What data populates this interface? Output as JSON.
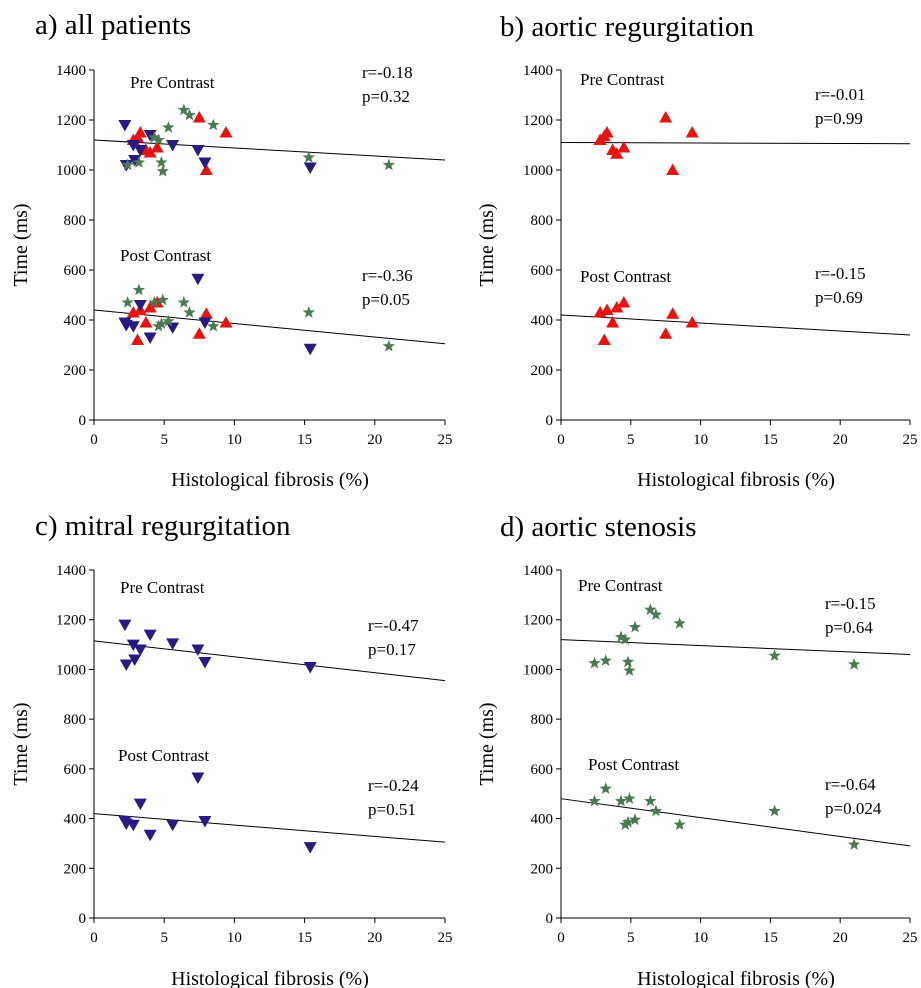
{
  "colors": {
    "aortic_regurgitation": "#e8130f",
    "mitral_regurgitation": "#271b83",
    "aortic_stenosis": "#4a7a52",
    "axis": "#000000",
    "regression_line": "#000000"
  },
  "markers": {
    "aortic_regurgitation": "triangle-up",
    "mitral_regurgitation": "triangle-down",
    "aortic_stenosis": "star"
  },
  "chart_data": [
    {
      "type": "scatter",
      "title": "a) all patients",
      "xlabel": "Histological fibrosis (%)",
      "ylabel": "Time (ms)",
      "xlim": [
        0,
        25
      ],
      "ylim": [
        0,
        1400
      ],
      "xticks": [
        "0",
        "5",
        "10",
        "15",
        "20",
        "25"
      ],
      "yticks": [
        "0",
        "200",
        "400",
        "600",
        "800",
        "1000",
        "1200",
        "1400"
      ],
      "grid": false,
      "groups": [
        {
          "label": "Pre Contrast",
          "stats": [
            "r=-0.18",
            "p=0.32"
          ],
          "regression": {
            "x": [
              0,
              25
            ],
            "y": [
              1120,
              1040
            ]
          },
          "series": [
            {
              "marker": "triangle-up",
              "color_key": "aortic_regurgitation",
              "points": [
                [
                  2.8,
                  1120
                ],
                [
                  3.1,
                  1130
                ],
                [
                  3.3,
                  1150
                ],
                [
                  3.7,
                  1080
                ],
                [
                  4.0,
                  1070
                ],
                [
                  4.5,
                  1090
                ],
                [
                  7.5,
                  1210
                ],
                [
                  8.0,
                  1000
                ],
                [
                  9.4,
                  1150
                ]
              ]
            },
            {
              "marker": "triangle-down",
              "color_key": "mitral_regurgitation",
              "points": [
                [
                  2.2,
                  1180
                ],
                [
                  2.3,
                  1020
                ],
                [
                  2.8,
                  1100
                ],
                [
                  2.9,
                  1040
                ],
                [
                  3.3,
                  1080
                ],
                [
                  4.0,
                  1140
                ],
                [
                  5.6,
                  1100
                ],
                [
                  7.4,
                  1080
                ],
                [
                  7.9,
                  1030
                ],
                [
                  15.4,
                  1010
                ]
              ]
            },
            {
              "marker": "star",
              "color_key": "aortic_stenosis",
              "points": [
                [
                  2.4,
                  1020
                ],
                [
                  3.2,
                  1030
                ],
                [
                  4.3,
                  1130
                ],
                [
                  4.6,
                  1120
                ],
                [
                  4.8,
                  1030
                ],
                [
                  4.9,
                  995
                ],
                [
                  5.3,
                  1170
                ],
                [
                  6.4,
                  1240
                ],
                [
                  6.8,
                  1220
                ],
                [
                  8.5,
                  1180
                ],
                [
                  15.3,
                  1050
                ],
                [
                  21.0,
                  1020
                ]
              ]
            }
          ]
        },
        {
          "label": "Post Contrast",
          "stats": [
            "r=-0.36",
            "p=0.05"
          ],
          "regression": {
            "x": [
              0,
              25
            ],
            "y": [
              440,
              305
            ]
          },
          "series": [
            {
              "marker": "triangle-up",
              "color_key": "aortic_regurgitation",
              "points": [
                [
                  2.8,
                  430
                ],
                [
                  3.1,
                  320
                ],
                [
                  3.3,
                  440
                ],
                [
                  3.7,
                  390
                ],
                [
                  4.0,
                  450
                ],
                [
                  4.5,
                  470
                ],
                [
                  7.5,
                  345
                ],
                [
                  8.0,
                  425
                ],
                [
                  9.4,
                  390
                ]
              ]
            },
            {
              "marker": "triangle-down",
              "color_key": "mitral_regurgitation",
              "points": [
                [
                  2.2,
                  390
                ],
                [
                  2.3,
                  380
                ],
                [
                  2.8,
                  375
                ],
                [
                  3.3,
                  460
                ],
                [
                  4.0,
                  330
                ],
                [
                  5.6,
                  370
                ],
                [
                  7.4,
                  565
                ],
                [
                  7.9,
                  390
                ],
                [
                  15.4,
                  285
                ]
              ]
            },
            {
              "marker": "star",
              "color_key": "aortic_stenosis",
              "points": [
                [
                  2.4,
                  470
                ],
                [
                  3.2,
                  520
                ],
                [
                  4.3,
                  470
                ],
                [
                  4.6,
                  375
                ],
                [
                  4.8,
                  385
                ],
                [
                  4.9,
                  480
                ],
                [
                  5.3,
                  395
                ],
                [
                  6.4,
                  470
                ],
                [
                  6.8,
                  430
                ],
                [
                  8.5,
                  375
                ],
                [
                  15.3,
                  430
                ],
                [
                  21.0,
                  295
                ]
              ]
            }
          ]
        }
      ]
    },
    {
      "type": "scatter",
      "title": "b) aortic regurgitation",
      "xlabel": "Histological fibrosis (%)",
      "ylabel": "Time (ms)",
      "xlim": [
        0,
        25
      ],
      "ylim": [
        0,
        1400
      ],
      "xticks": [
        "0",
        "5",
        "10",
        "15",
        "20",
        "25"
      ],
      "yticks": [
        "0",
        "200",
        "400",
        "600",
        "800",
        "1000",
        "1200",
        "1400"
      ],
      "grid": false,
      "groups": [
        {
          "label": "Pre Contrast",
          "stats": [
            "r=-0.01",
            "p=0.99"
          ],
          "regression": {
            "x": [
              0,
              25
            ],
            "y": [
              1110,
              1105
            ]
          },
          "series": [
            {
              "marker": "triangle-up",
              "color_key": "aortic_regurgitation",
              "points": [
                [
                  2.8,
                  1120
                ],
                [
                  3.1,
                  1135
                ],
                [
                  3.3,
                  1150
                ],
                [
                  3.7,
                  1080
                ],
                [
                  4.0,
                  1065
                ],
                [
                  4.5,
                  1090
                ],
                [
                  7.5,
                  1210
                ],
                [
                  8.0,
                  1000
                ],
                [
                  9.4,
                  1150
                ]
              ]
            }
          ]
        },
        {
          "label": "Post Contrast",
          "stats": [
            "r=-0.15",
            "p=0.69"
          ],
          "regression": {
            "x": [
              0,
              25
            ],
            "y": [
              420,
              340
            ]
          },
          "series": [
            {
              "marker": "triangle-up",
              "color_key": "aortic_regurgitation",
              "points": [
                [
                  2.8,
                  430
                ],
                [
                  3.1,
                  320
                ],
                [
                  3.3,
                  440
                ],
                [
                  3.7,
                  390
                ],
                [
                  4.0,
                  450
                ],
                [
                  4.5,
                  470
                ],
                [
                  7.5,
                  345
                ],
                [
                  8.0,
                  425
                ],
                [
                  9.4,
                  390
                ]
              ]
            }
          ]
        }
      ]
    },
    {
      "type": "scatter",
      "title": "c) mitral regurgitation",
      "xlabel": "Histological fibrosis (%)",
      "ylabel": "Time (ms)",
      "xlim": [
        0,
        25
      ],
      "ylim": [
        0,
        1400
      ],
      "xticks": [
        "0",
        "5",
        "10",
        "15",
        "20",
        "25"
      ],
      "yticks": [
        "0",
        "200",
        "400",
        "600",
        "800",
        "1000",
        "1200",
        "1400"
      ],
      "grid": false,
      "groups": [
        {
          "label": "Pre Contrast",
          "stats": [
            "r=-0.47",
            "p=0.17"
          ],
          "regression": {
            "x": [
              0,
              25
            ],
            "y": [
              1115,
              955
            ]
          },
          "series": [
            {
              "marker": "triangle-down",
              "color_key": "mitral_regurgitation",
              "points": [
                [
                  2.2,
                  1180
                ],
                [
                  2.3,
                  1020
                ],
                [
                  2.8,
                  1100
                ],
                [
                  2.9,
                  1040
                ],
                [
                  3.3,
                  1080
                ],
                [
                  4.0,
                  1140
                ],
                [
                  5.6,
                  1105
                ],
                [
                  7.4,
                  1080
                ],
                [
                  7.9,
                  1030
                ],
                [
                  15.4,
                  1010
                ]
              ]
            }
          ]
        },
        {
          "label": "Post Contrast",
          "stats": [
            "r=-0.24",
            "p=0.51"
          ],
          "regression": {
            "x": [
              0,
              25
            ],
            "y": [
              420,
              305
            ]
          },
          "series": [
            {
              "marker": "triangle-down",
              "color_key": "mitral_regurgitation",
              "points": [
                [
                  2.2,
                  390
                ],
                [
                  2.3,
                  380
                ],
                [
                  2.8,
                  375
                ],
                [
                  3.3,
                  460
                ],
                [
                  4.0,
                  335
                ],
                [
                  5.6,
                  375
                ],
                [
                  7.4,
                  565
                ],
                [
                  7.9,
                  390
                ],
                [
                  15.4,
                  285
                ]
              ]
            }
          ]
        }
      ]
    },
    {
      "type": "scatter",
      "title": "d) aortic stenosis",
      "xlabel": "Histological fibrosis (%)",
      "ylabel": "Time (ms)",
      "xlim": [
        0,
        25
      ],
      "ylim": [
        0,
        1400
      ],
      "xticks": [
        "0",
        "5",
        "10",
        "15",
        "20",
        "25"
      ],
      "yticks": [
        "0",
        "200",
        "400",
        "600",
        "800",
        "1000",
        "1200",
        "1400"
      ],
      "grid": false,
      "groups": [
        {
          "label": "Pre Contrast",
          "stats": [
            "r=-0.15",
            "p=0.64"
          ],
          "regression": {
            "x": [
              0,
              25
            ],
            "y": [
              1120,
              1060
            ]
          },
          "series": [
            {
              "marker": "star",
              "color_key": "aortic_stenosis",
              "points": [
                [
                  2.4,
                  1025
                ],
                [
                  3.2,
                  1035
                ],
                [
                  4.3,
                  1130
                ],
                [
                  4.6,
                  1120
                ],
                [
                  4.8,
                  1030
                ],
                [
                  4.9,
                  995
                ],
                [
                  5.3,
                  1170
                ],
                [
                  6.4,
                  1240
                ],
                [
                  6.8,
                  1220
                ],
                [
                  8.5,
                  1185
                ],
                [
                  15.3,
                  1055
                ],
                [
                  21.0,
                  1020
                ]
              ]
            }
          ]
        },
        {
          "label": "Post Contrast",
          "stats": [
            "r=-0.64",
            "p=0.024"
          ],
          "regression": {
            "x": [
              0,
              25
            ],
            "y": [
              480,
              290
            ]
          },
          "series": [
            {
              "marker": "star",
              "color_key": "aortic_stenosis",
              "points": [
                [
                  2.4,
                  470
                ],
                [
                  3.2,
                  520
                ],
                [
                  4.3,
                  470
                ],
                [
                  4.6,
                  375
                ],
                [
                  4.8,
                  385
                ],
                [
                  4.9,
                  480
                ],
                [
                  5.3,
                  395
                ],
                [
                  6.4,
                  470
                ],
                [
                  6.8,
                  430
                ],
                [
                  8.5,
                  375
                ],
                [
                  15.3,
                  430
                ],
                [
                  21.0,
                  295
                ]
              ]
            }
          ]
        }
      ]
    }
  ]
}
